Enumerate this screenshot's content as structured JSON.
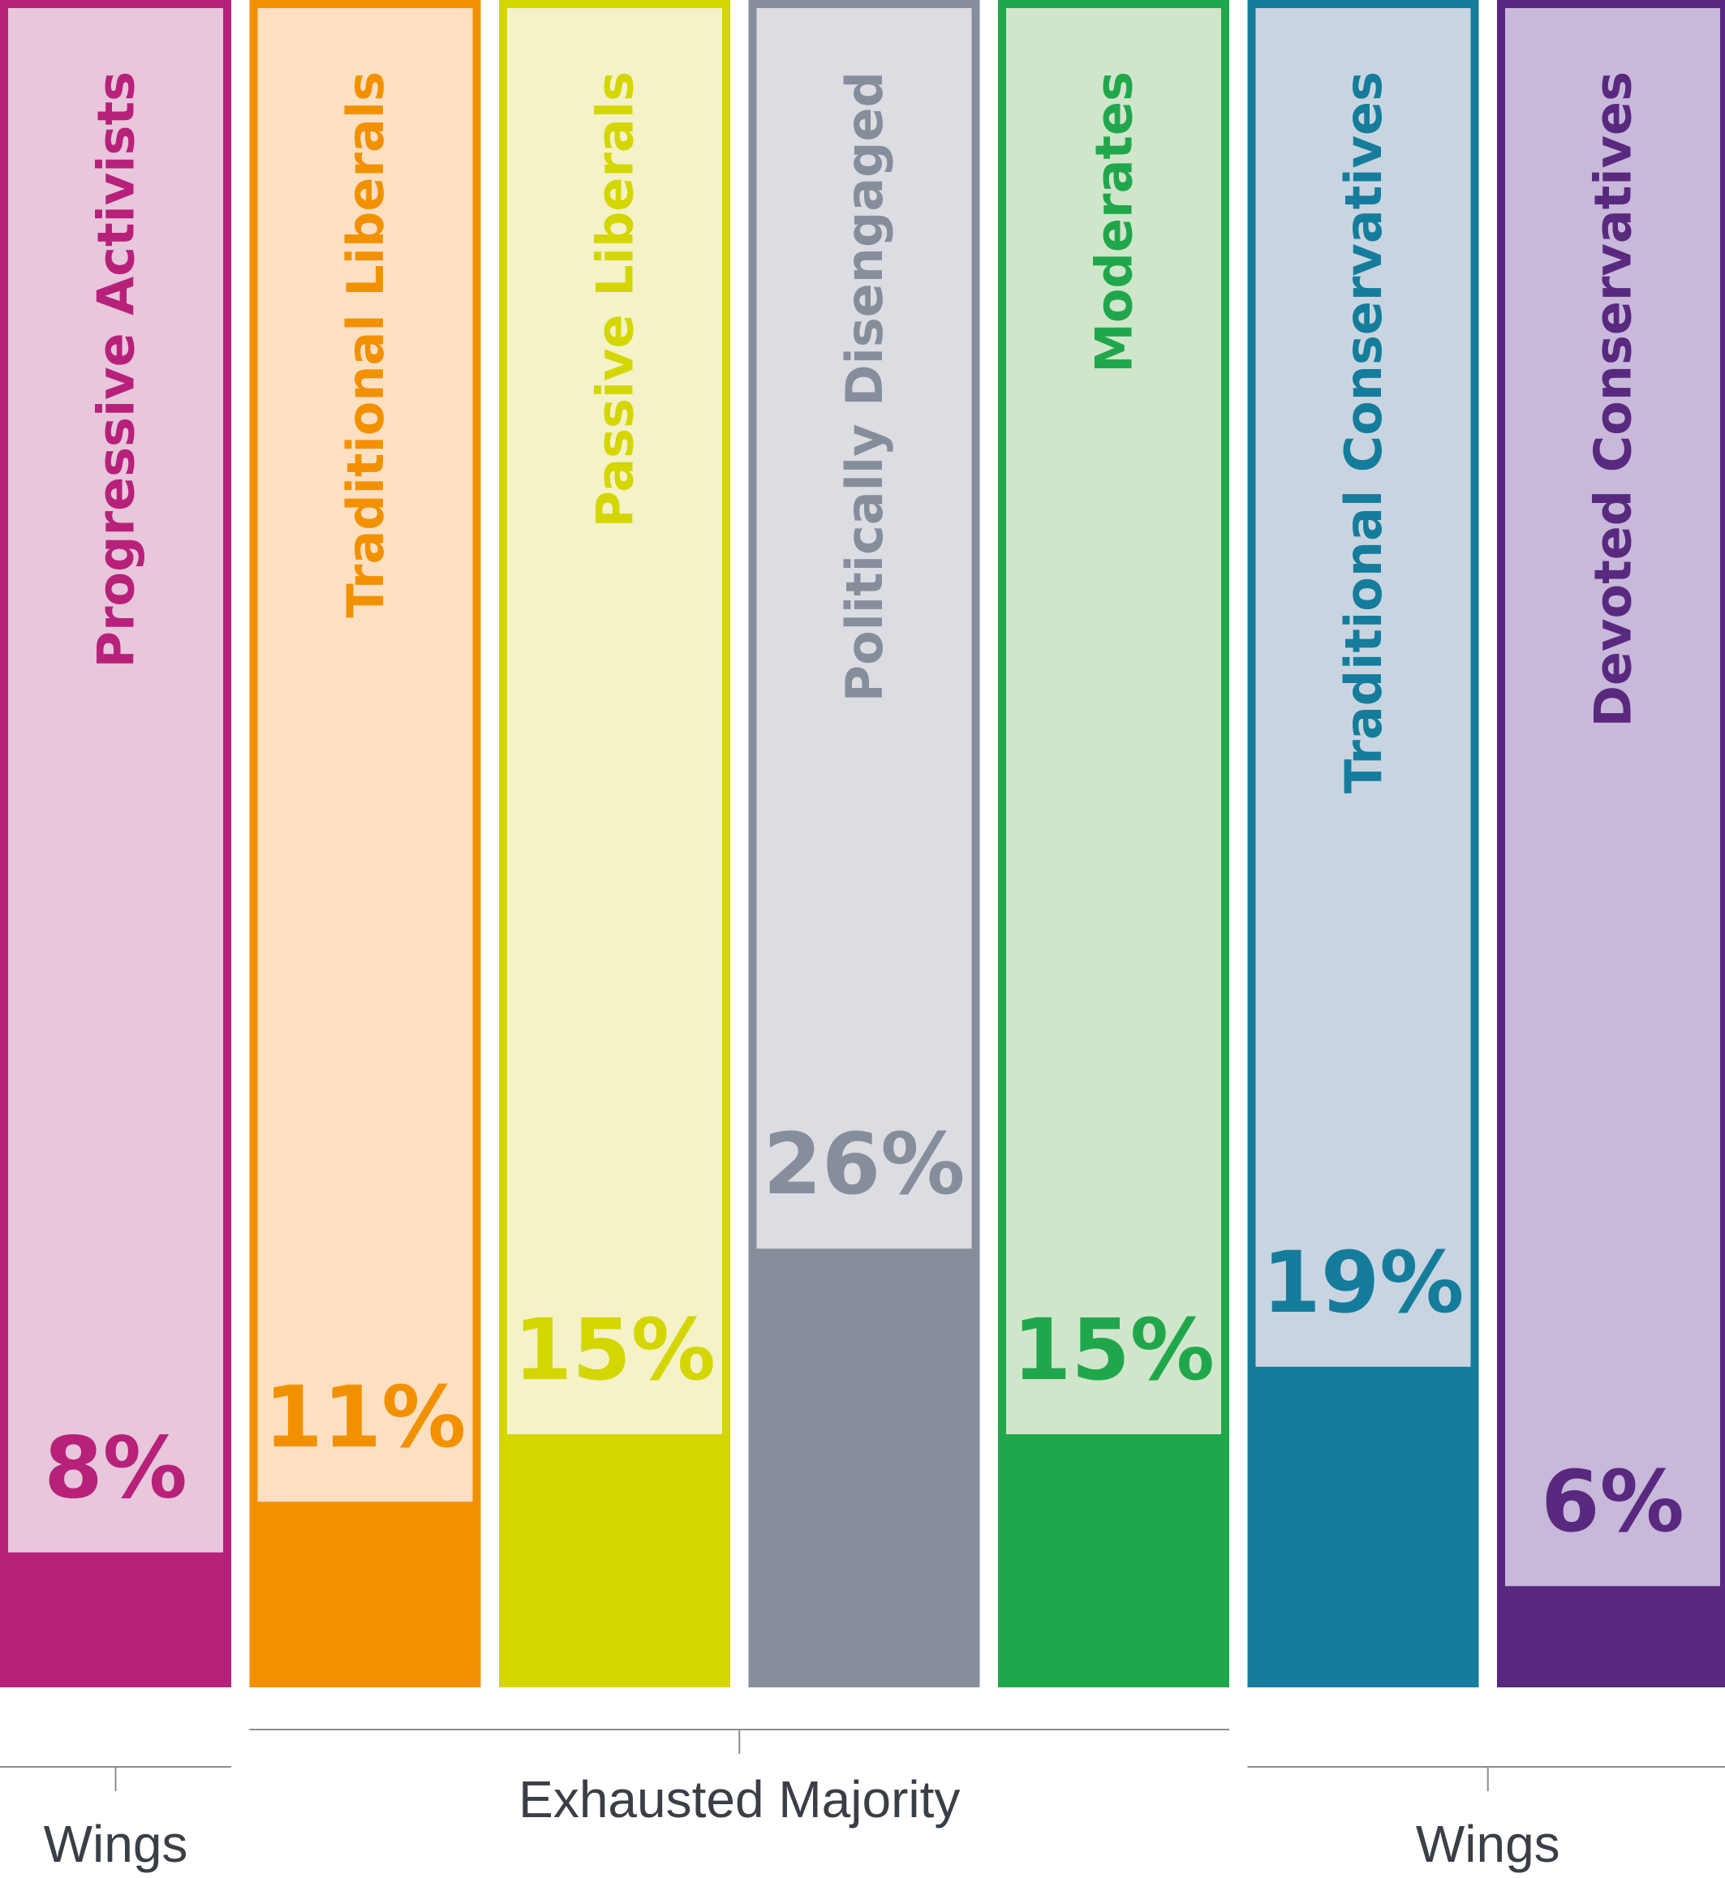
{
  "chart_data": {
    "type": "bar",
    "categories": [
      "Progressive Activists",
      "Traditional Liberals",
      "Passive Liberals",
      "Politically Disengaged",
      "Moderates",
      "Traditional Conservatives",
      "Devoted Conservatives"
    ],
    "values": [
      8,
      11,
      15,
      26,
      15,
      19,
      6
    ],
    "value_labels": [
      "8%",
      "11%",
      "15%",
      "26%",
      "15%",
      "19%",
      "6%"
    ],
    "colors": [
      "#b7217a",
      "#f29100",
      "#d4d600",
      "#868e9c",
      "#21a74b",
      "#157c9c",
      "#58297f"
    ],
    "light_colors": [
      "#e8c6dc",
      "#fde0c2",
      "#f4f2c6",
      "#dcdde2",
      "#d0e6cb",
      "#c8d5e0",
      "#c8b8da"
    ],
    "label_colors": [
      "#b7217a",
      "#f29100",
      "#d4d600",
      "#868e9c",
      "#21a74b",
      "#157c9c",
      "#58297f"
    ],
    "ylim": [
      0,
      100
    ],
    "groups": [
      {
        "label": "Wings",
        "from": 0,
        "to": 0
      },
      {
        "label": "Exhausted Majority",
        "from": 1,
        "to": 4
      },
      {
        "label": "Wings",
        "from": 5,
        "to": 6
      }
    ],
    "title": "",
    "xlabel": "",
    "ylabel": ""
  }
}
